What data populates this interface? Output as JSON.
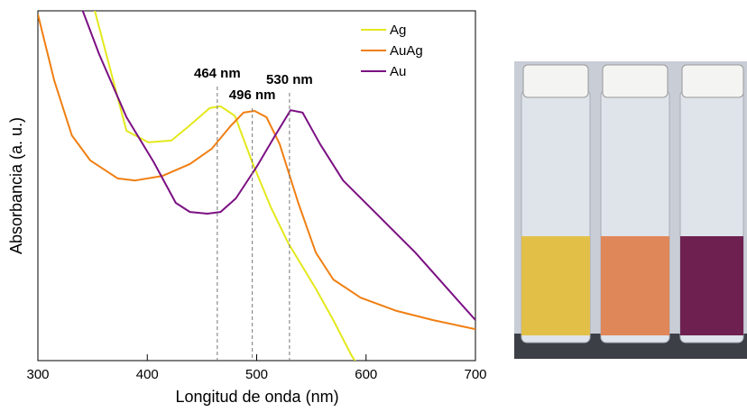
{
  "chart_data": {
    "type": "line",
    "xlabel": "Longitud de onda (nm)",
    "ylabel": "Absorbancia (a. u.)",
    "xlim": [
      300,
      700
    ],
    "ylim": [
      0,
      1
    ],
    "xticks": [
      300,
      400,
      500,
      600,
      700
    ],
    "legend": "upper right",
    "annotations": [
      {
        "label": "464 nm",
        "x": 464
      },
      {
        "label": "496 nm",
        "x": 496
      },
      {
        "label": "530 nm",
        "x": 530
      }
    ],
    "series": [
      {
        "name": "Ag",
        "color": "#e3e81c",
        "x": [
          345,
          352,
          381,
          401,
          422,
          438,
          457,
          467,
          480,
          496,
          513,
          529,
          554,
          570,
          587,
          592
        ],
        "values": [
          1.05,
          1.0,
          0.657,
          0.624,
          0.629,
          0.67,
          0.722,
          0.727,
          0.7,
          0.567,
          0.438,
          0.335,
          0.206,
          0.116,
          0.013,
          -0.01
        ]
      },
      {
        "name": "AuAg",
        "color": "#f07f12",
        "x": [
          300,
          315,
          331,
          348,
          373,
          389,
          414,
          439,
          459,
          476,
          488,
          498,
          509,
          521,
          538,
          554,
          570,
          595,
          628,
          661,
          700
        ],
        "values": [
          0.99,
          0.8,
          0.644,
          0.572,
          0.521,
          0.515,
          0.528,
          0.562,
          0.606,
          0.67,
          0.709,
          0.714,
          0.696,
          0.619,
          0.451,
          0.309,
          0.232,
          0.18,
          0.142,
          0.116,
          0.09
        ]
      },
      {
        "name": "Au",
        "color": "#7b1083",
        "x": [
          338,
          341,
          356,
          381,
          406,
          426,
          439,
          455,
          467,
          481,
          500,
          517,
          531,
          542,
          558,
          579,
          612,
          645,
          678,
          700
        ],
        "values": [
          1.05,
          1.0,
          0.876,
          0.696,
          0.567,
          0.451,
          0.425,
          0.42,
          0.425,
          0.464,
          0.554,
          0.644,
          0.716,
          0.709,
          0.619,
          0.515,
          0.412,
          0.309,
          0.193,
          0.116
        ]
      }
    ]
  }
}
